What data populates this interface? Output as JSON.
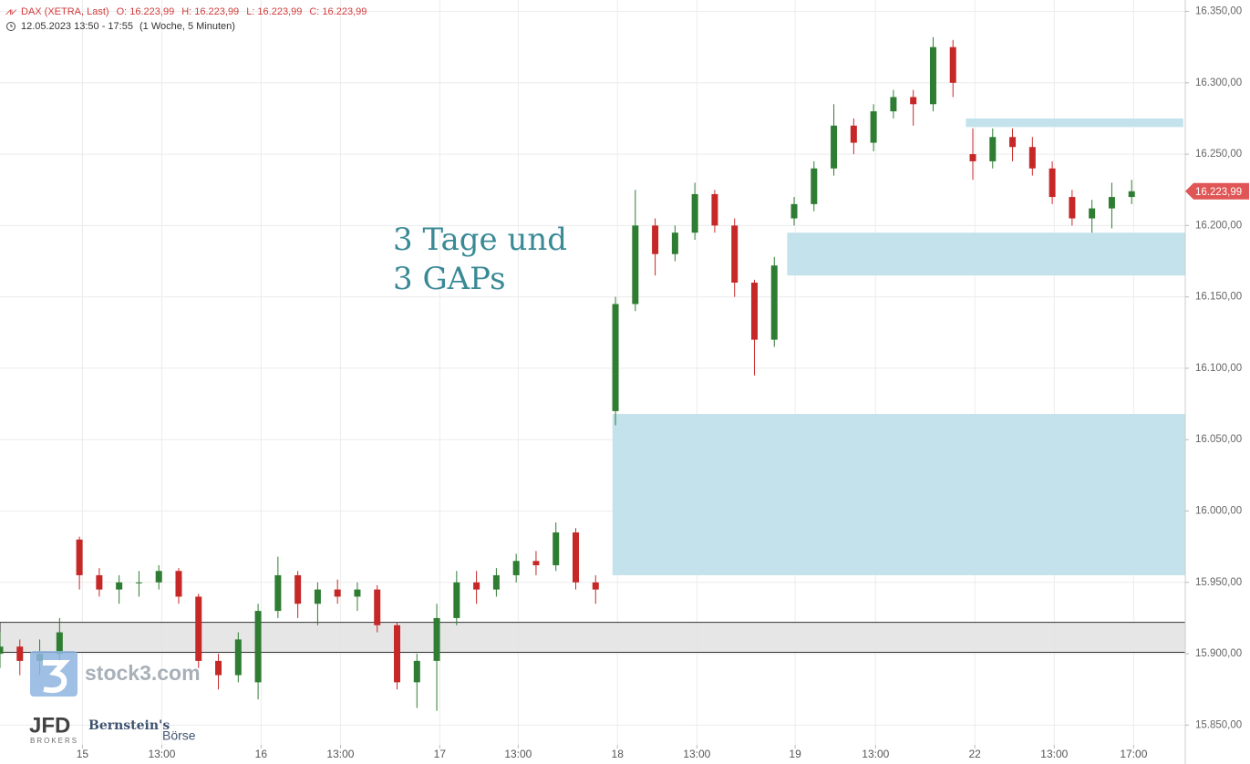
{
  "chart_data": {
    "type": "candlestick",
    "title": "DAX (XETRA, Last)",
    "header_values": [
      "O: 16.223,99",
      "H: 16.223,99",
      "L: 16.223,99",
      "C: 16.223,99"
    ],
    "subtitle": "12.05.2023 13:50 - 17:55",
    "period": "(1 Woche, 5 Minuten)",
    "annotation": [
      "3 Tage und",
      "3 GAPs"
    ],
    "branding": [
      "stock3.com",
      "JFD",
      "BROKERS",
      "Bernstein's",
      "Börse"
    ],
    "up_color": "#2e7d32",
    "down_color": "#c62828",
    "grid": true,
    "xlim": [
      0,
      119.4
    ],
    "ylim": [
      15840,
      16358
    ],
    "xticks": [
      {
        "value": 8.3,
        "label": "15"
      },
      {
        "value": 16.3,
        "label": "13:00"
      },
      {
        "value": 26.3,
        "label": "16"
      },
      {
        "value": 34.3,
        "label": "13:00"
      },
      {
        "value": 44.3,
        "label": "17"
      },
      {
        "value": 52.2,
        "label": "13:00"
      },
      {
        "value": 62.2,
        "label": "18"
      },
      {
        "value": 70.2,
        "label": "13:00"
      },
      {
        "value": 80.1,
        "label": "19"
      },
      {
        "value": 88.2,
        "label": "13:00"
      },
      {
        "value": 98.2,
        "label": "22"
      },
      {
        "value": 106.2,
        "label": "13:00"
      },
      {
        "value": 114.2,
        "label": "17:00"
      }
    ],
    "yticks": [
      {
        "value": 15850,
        "label": "15.850,00"
      },
      {
        "value": 15900,
        "label": "15.900,00"
      },
      {
        "value": 15950,
        "label": "15.950,00"
      },
      {
        "value": 16000,
        "label": "16.000,00"
      },
      {
        "value": 16050,
        "label": "16.050,00"
      },
      {
        "value": 16100,
        "label": "16.100,00"
      },
      {
        "value": 16150,
        "label": "16.150,00"
      },
      {
        "value": 16200,
        "label": "16.200,00"
      },
      {
        "value": 16250,
        "label": "16.250,00"
      },
      {
        "value": 16300,
        "label": "16.300,00"
      },
      {
        "value": 16350,
        "label": "16.350,00"
      }
    ],
    "last_price": {
      "value": 16223.99,
      "label": "16.223,99"
    },
    "zones": [
      {
        "x": [
          97.3,
          119.2
        ],
        "y": [
          16269,
          16275
        ],
        "color": "#c3e2ec"
      },
      {
        "x": [
          79.3,
          119.4
        ],
        "y": [
          16165,
          16195
        ],
        "color": "#c3e2ec"
      },
      {
        "x": [
          61.7,
          119.4
        ],
        "y": [
          15955,
          16068
        ],
        "color": "#c3e2ec"
      },
      {
        "x": [
          0,
          119.4
        ],
        "y": [
          15901,
          15922
        ],
        "color": "#e3e3e3"
      }
    ],
    "x": [
      0,
      2,
      4,
      6,
      8,
      10,
      12,
      14,
      16,
      18,
      20,
      22,
      24,
      26,
      28,
      30,
      32,
      34,
      36,
      38,
      40,
      42,
      44,
      46,
      48,
      50,
      52,
      54,
      56,
      58,
      60,
      62,
      64,
      66,
      68,
      70,
      72,
      74,
      76,
      78,
      80,
      82,
      84,
      86,
      88,
      90,
      92,
      94,
      96,
      98,
      100,
      102,
      104,
      106,
      108,
      110,
      112,
      114
    ],
    "open": [
      15900,
      15905,
      15895,
      15900,
      15980,
      15955,
      15945,
      15950,
      15950,
      15958,
      15940,
      15895,
      15885,
      15880,
      15930,
      15955,
      15935,
      15945,
      15940,
      15945,
      15920,
      15880,
      15895,
      15925,
      15950,
      15945,
      15955,
      15965,
      15962,
      15985,
      15950,
      16070,
      16145,
      16200,
      16180,
      16195,
      16222,
      16200,
      16160,
      16120,
      16205,
      16215,
      16240,
      16270,
      16258,
      16280,
      16290,
      16285,
      16325,
      16250,
      16245,
      16262,
      16255,
      16240,
      16220,
      16205,
      16212,
      16220
    ],
    "high": [
      15915,
      15910,
      15910,
      15925,
      15982,
      15960,
      15955,
      15958,
      15962,
      15960,
      15942,
      15900,
      15915,
      15935,
      15968,
      15958,
      15950,
      15952,
      15950,
      15948,
      15922,
      15900,
      15935,
      15958,
      15958,
      15960,
      15970,
      15972,
      15992,
      15988,
      15955,
      16150,
      16225,
      16205,
      16200,
      16230,
      16225,
      16205,
      16162,
      16178,
      16220,
      16245,
      16285,
      16275,
      16285,
      16295,
      16295,
      16332,
      16330,
      16268,
      16268,
      16268,
      16262,
      16245,
      16225,
      16218,
      16230,
      16232
    ],
    "low": [
      15890,
      15885,
      15885,
      15895,
      15945,
      15940,
      15935,
      15940,
      15945,
      15935,
      15890,
      15875,
      15880,
      15868,
      15925,
      15925,
      15920,
      15935,
      15930,
      15915,
      15875,
      15862,
      15860,
      15920,
      15935,
      15940,
      15950,
      15955,
      15958,
      15945,
      15935,
      16060,
      16140,
      16165,
      16175,
      16190,
      16195,
      16150,
      16095,
      16115,
      16200,
      16210,
      16235,
      16250,
      16252,
      16275,
      16270,
      16280,
      16290,
      16232,
      16240,
      16245,
      16235,
      16215,
      16200,
      16195,
      16198,
      16215
    ],
    "close": [
      15905,
      15895,
      15900,
      15915,
      15955,
      15945,
      15950,
      15950,
      15958,
      15940,
      15895,
      15885,
      15910,
      15930,
      15955,
      15935,
      15945,
      15940,
      15945,
      15920,
      15880,
      15895,
      15925,
      15950,
      15945,
      15955,
      15965,
      15962,
      15985,
      15950,
      15945,
      16145,
      16200,
      16180,
      16195,
      16222,
      16200,
      16160,
      16120,
      16172,
      16215,
      16240,
      16270,
      16258,
      16280,
      16290,
      16285,
      16325,
      16300,
      16245,
      16262,
      16255,
      16240,
      16220,
      16205,
      16212,
      16220,
      16224
    ]
  }
}
